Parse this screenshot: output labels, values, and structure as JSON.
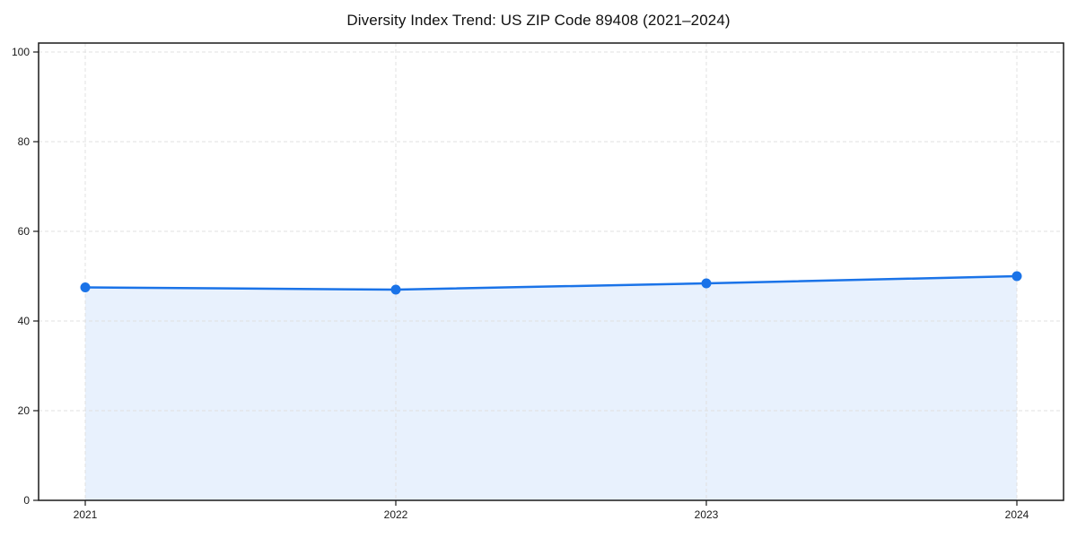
{
  "chart_data": {
    "type": "line",
    "title": "Diversity Index Trend: US ZIP Code 89408 (2021–2024)",
    "x": [
      "2021",
      "2022",
      "2023",
      "2024"
    ],
    "series": [
      {
        "name": "Diversity Index",
        "values": [
          47.5,
          47.0,
          48.4,
          50.0
        ]
      }
    ],
    "xlabel": "",
    "ylabel": "",
    "ylim": [
      0,
      102
    ],
    "yticks": [
      0,
      20,
      40,
      60,
      80,
      100
    ],
    "grid": true,
    "grid_style": "dashed",
    "legend": "none",
    "area_fill": true,
    "marker_style": "circle"
  },
  "style": {
    "line_color": "#1a73e8",
    "marker_color": "#1a73e8",
    "fill_color": "#1a73e8",
    "fill_opacity": 0.1,
    "grid_color": "#e0e0e0",
    "axis_color": "#1a1a1a",
    "text_color": "#1a1a1a",
    "background_color": "#ffffff"
  }
}
